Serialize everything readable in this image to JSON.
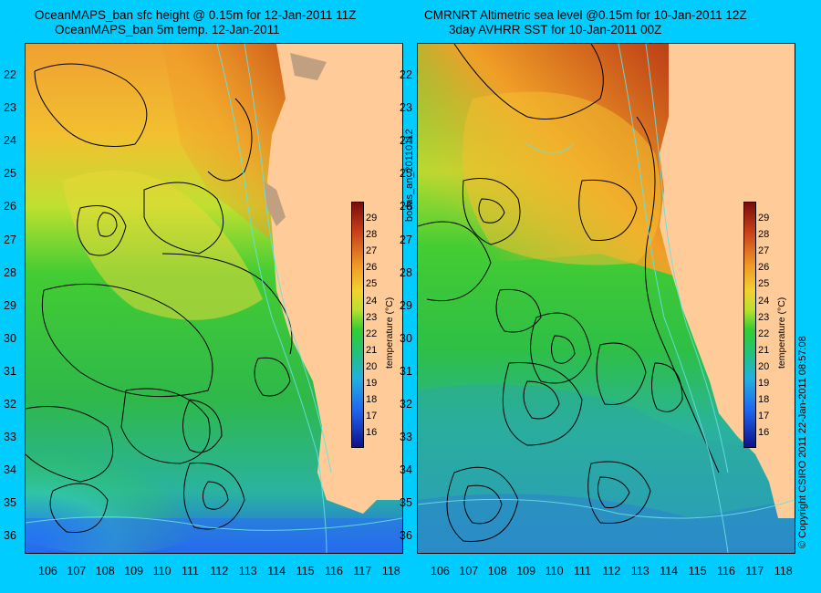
{
  "left_panel": {
    "title_line1": "OceanMAPS_ban sfc height @ 0.15m for 12-Jan-2011 11Z",
    "title_line2": "OceanMAPS_ban 5m temp. 12-Jan-2011"
  },
  "right_panel": {
    "title_line1": "CMRNRT Altimetric sea level  @0.15m  for 10-Jan-2011 12Z",
    "title_line2": "3day AVHRR SST for 10-Jan-2011 00Z"
  },
  "vertical_id": "bodas_an_20110112",
  "copyright": "© Copyright CSIRO 2011   22-Jan-2011 08:57:08",
  "axes": {
    "longitudes": [
      "106",
      "107",
      "108",
      "109",
      "110",
      "111",
      "112",
      "113",
      "114",
      "115",
      "116",
      "117",
      "118"
    ],
    "latitudes": [
      "22",
      "23",
      "24",
      "25",
      "26",
      "27",
      "28",
      "29",
      "30",
      "31",
      "32",
      "33",
      "34",
      "35",
      "36"
    ]
  },
  "colorbar": {
    "label": "temperature (°C)",
    "ticks": [
      "29",
      "28",
      "27",
      "26",
      "25",
      "24",
      "23",
      "22",
      "21",
      "20",
      "19",
      "18",
      "17",
      "16"
    ],
    "min": 15,
    "max": 30
  },
  "colors": {
    "background": "#00ccff",
    "land": "#ffcc99"
  }
}
